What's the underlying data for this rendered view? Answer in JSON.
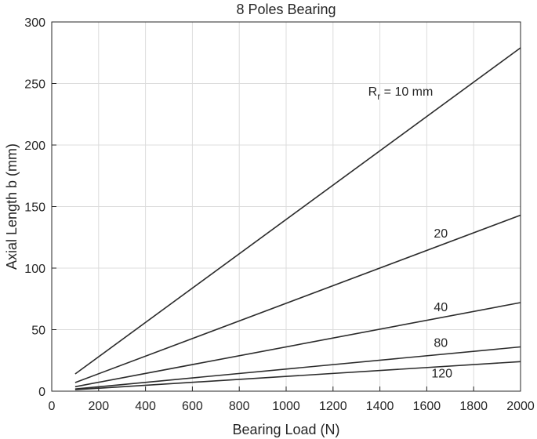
{
  "chart_data": {
    "type": "line",
    "title": "8 Poles Bearing",
    "xlabel": "Bearing Load (N)",
    "ylabel": "Axial Length b (mm)",
    "xlim": [
      0,
      2000
    ],
    "ylim": [
      0,
      300
    ],
    "xticks": [
      0,
      200,
      400,
      600,
      800,
      1000,
      1200,
      1400,
      1600,
      1800,
      2000
    ],
    "yticks": [
      0,
      50,
      100,
      150,
      200,
      250,
      300
    ],
    "grid": true,
    "series": [
      {
        "x": [
          100,
          2000
        ],
        "y": [
          14,
          279
        ]
      },
      {
        "x": [
          100,
          2000
        ],
        "y": [
          7,
          143
        ]
      },
      {
        "x": [
          100,
          2000
        ],
        "y": [
          3.6,
          72
        ]
      },
      {
        "x": [
          100,
          2000
        ],
        "y": [
          1.8,
          36
        ]
      },
      {
        "x": [
          100,
          2000
        ],
        "y": [
          1.2,
          24
        ]
      }
    ],
    "annotations": [
      {
        "text": "R",
        "subscript": "r",
        "suffix": " = 10 mm",
        "x": 1350,
        "y": 240
      },
      {
        "text": "20",
        "x": 1630,
        "y": 125
      },
      {
        "text": "40",
        "x": 1630,
        "y": 65
      },
      {
        "text": "80",
        "x": 1630,
        "y": 36
      },
      {
        "text": "120",
        "x": 1620,
        "y": 11
      }
    ]
  }
}
